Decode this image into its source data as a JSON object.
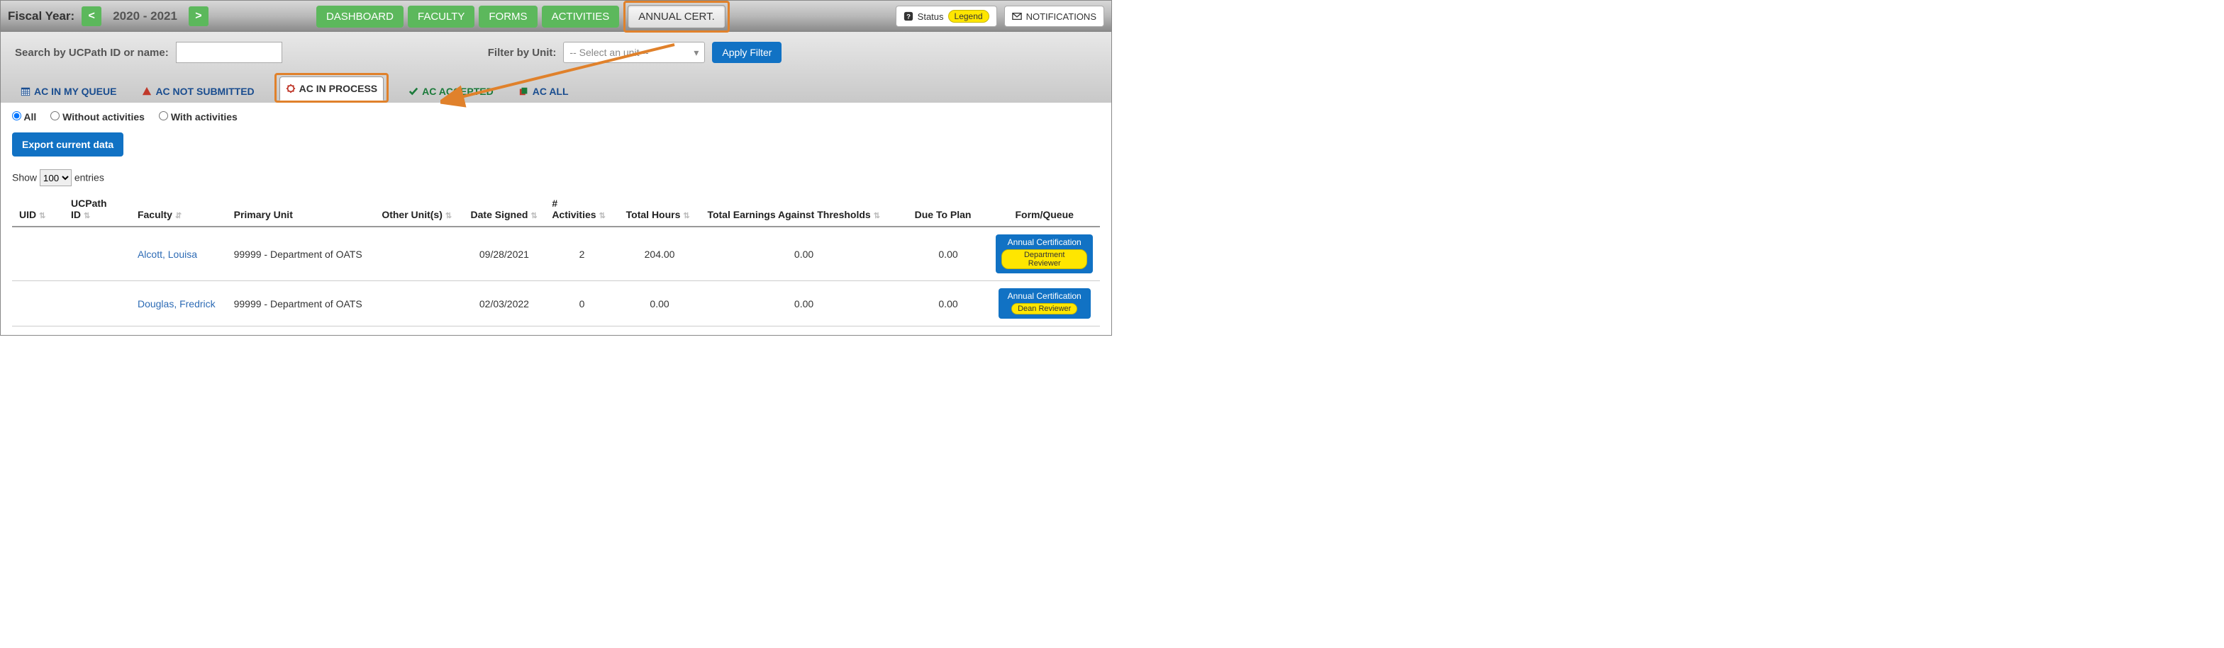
{
  "header": {
    "fiscal_year_label": "Fiscal Year:",
    "fiscal_year_value": "2020 - 2021",
    "prev": "<",
    "next": ">",
    "nav": {
      "dashboard": "DASHBOARD",
      "faculty": "FACULTY",
      "forms": "FORMS",
      "activities": "ACTIVITIES",
      "annual_cert": "ANNUAL CERT."
    },
    "status_label": "Status",
    "legend_label": "Legend",
    "notifications": "NOTIFICATIONS"
  },
  "filters": {
    "search_label": "Search by UCPath ID or name:",
    "filter_unit_label": "Filter by Unit:",
    "unit_placeholder": "-- Select an unit --",
    "apply": "Apply Filter"
  },
  "tabs": {
    "queue": "AC IN MY QUEUE",
    "not_submitted": "AC NOT SUBMITTED",
    "in_process": "AC IN PROCESS",
    "accepted": "AC ACCEPTED",
    "all": "AC ALL"
  },
  "radios": {
    "all": "All",
    "without": "Without activities",
    "with": "With activities"
  },
  "export_label": "Export current data",
  "show": {
    "prefix": "Show",
    "suffix": "entries",
    "value": "100"
  },
  "columns": {
    "uid": "UID",
    "ucpath": "UCPath ID",
    "faculty": "Faculty",
    "primary_unit": "Primary Unit",
    "other_units": "Other Unit(s)",
    "date_signed": "Date Signed",
    "num_activities": "# Activities",
    "total_hours": "Total Hours",
    "earnings": "Total Earnings Against Thresholds",
    "due_to_plan": "Due To Plan",
    "form_queue": "Form/Queue"
  },
  "rows": [
    {
      "faculty": "Alcott, Louisa",
      "primary_unit": "99999 - Department of OATS",
      "other_units": "",
      "date_signed": "09/28/2021",
      "num_activities": "2",
      "total_hours": "204.00",
      "earnings": "0.00",
      "due_to_plan": "0.00",
      "queue_title": "Annual Certification",
      "queue_sub": "Department Reviewer"
    },
    {
      "faculty": "Douglas, Fredrick",
      "primary_unit": "99999 - Department of OATS",
      "other_units": "",
      "date_signed": "02/03/2022",
      "num_activities": "0",
      "total_hours": "0.00",
      "earnings": "0.00",
      "due_to_plan": "0.00",
      "queue_title": "Annual Certification",
      "queue_sub": "Dean Reviewer"
    }
  ]
}
